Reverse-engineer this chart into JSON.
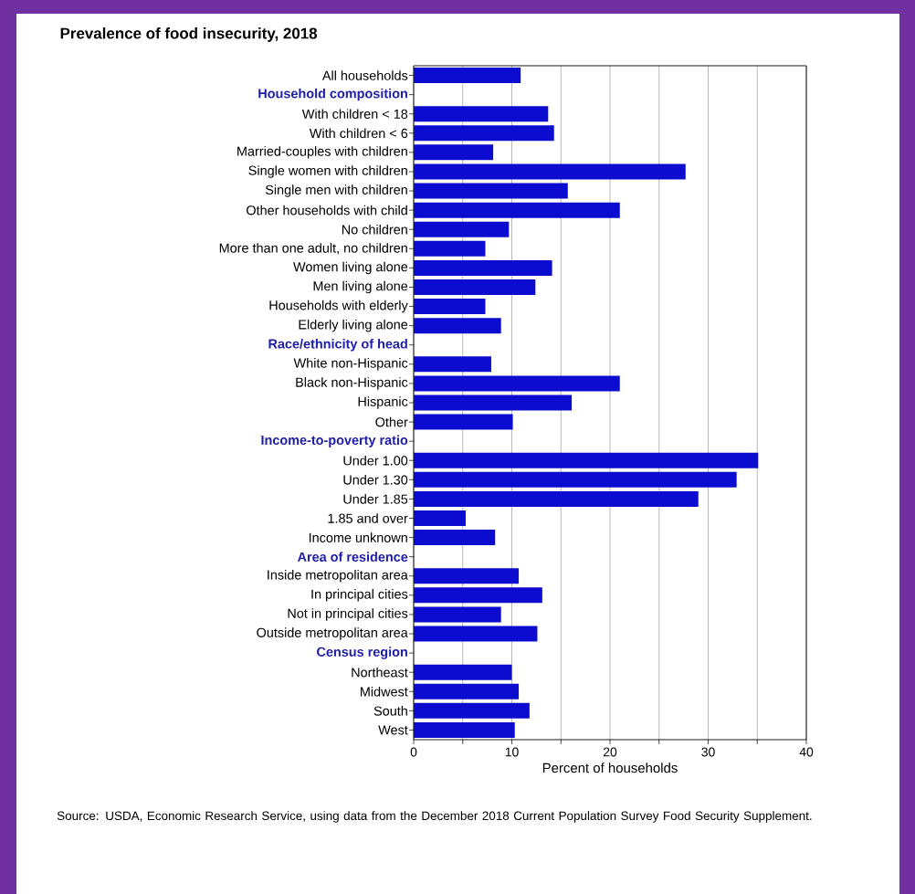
{
  "chart_data": {
    "type": "bar",
    "orientation": "horizontal",
    "title": "Prevalence of food insecurity, 2018",
    "xlabel": "Percent of households",
    "categories": [
      "All households",
      "Household composition",
      "With children < 18",
      "With children < 6",
      "Married-couples with children",
      "Single women with children",
      "Single men with children",
      "Other households with child",
      "No children",
      "More than one adult, no children",
      "Women living alone",
      "Men living alone",
      "Households with elderly",
      "Elderly living alone",
      "Race/ethnicity of head",
      "White non-Hispanic",
      "Black non-Hispanic",
      "Hispanic",
      "Other",
      "Income-to-poverty ratio",
      "Under 1.00",
      "Under 1.30",
      "Under 1.85",
      "1.85 and over",
      "Income unknown",
      "Area of residence",
      "Inside metropolitan area",
      "In principal cities",
      "Not in principal cities",
      "Outside metropolitan area",
      "Census region",
      "Northeast",
      "Midwest",
      "South",
      "West"
    ],
    "values": [
      10.9,
      null,
      13.7,
      14.3,
      8.1,
      27.7,
      15.7,
      21.0,
      9.7,
      7.3,
      14.1,
      12.4,
      7.3,
      8.9,
      null,
      7.9,
      21.0,
      16.1,
      10.1,
      null,
      35.1,
      32.9,
      29.0,
      5.3,
      8.3,
      null,
      10.7,
      13.1,
      8.9,
      12.6,
      null,
      10.0,
      10.7,
      11.8,
      10.3
    ],
    "color": "#0c0cd0",
    "xlim": [
      0,
      40
    ],
    "xticks": [
      0,
      {
        "value": 5,
        "label": null
      },
      10,
      {
        "value": 15,
        "label": null
      },
      20,
      {
        "value": 25,
        "label": null
      },
      30,
      {
        "value": 35,
        "label": null
      },
      40
    ],
    "grid": "x",
    "annotations": [
      "Source: USDA, Economic Research Service, using data from the December 2018 Current Population Survey Food Security Supplement."
    ]
  }
}
